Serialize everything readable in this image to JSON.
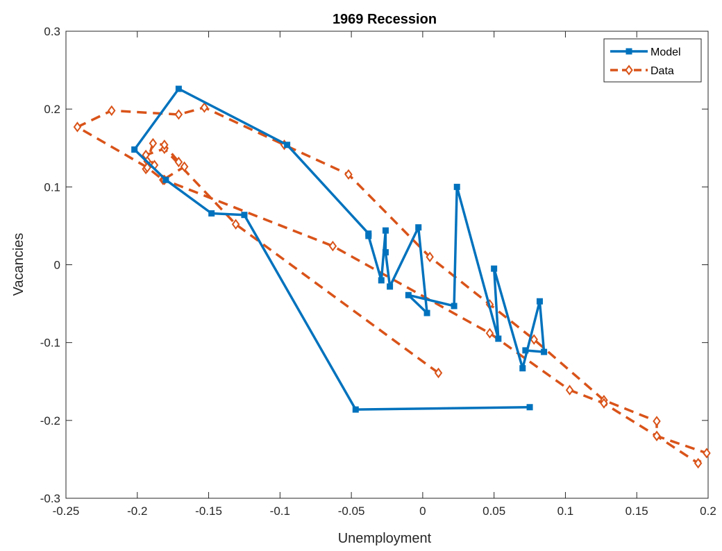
{
  "chart_data": {
    "type": "line",
    "title": "1969 Recession",
    "xlabel": "Unemployment",
    "ylabel": "Vacancies",
    "xlim": [
      -0.25,
      0.2
    ],
    "ylim": [
      -0.3,
      0.3
    ],
    "xticks": [
      -0.25,
      -0.2,
      -0.15,
      -0.1,
      -0.05,
      0,
      0.05,
      0.1,
      0.15,
      0.2
    ],
    "yticks": [
      -0.3,
      -0.2,
      -0.1,
      0,
      0.1,
      0.2,
      0.3
    ],
    "xtick_labels": [
      "-0.25",
      "-0.2",
      "-0.15",
      "-0.1",
      "-0.05",
      "0",
      "0.05",
      "0.1",
      "0.15",
      "0.2"
    ],
    "ytick_labels": [
      "-0.3",
      "-0.2",
      "-0.1",
      "0",
      "0.1",
      "0.2",
      "0.3"
    ],
    "grid": false,
    "legend_position": "top-right",
    "series": [
      {
        "name": "Model",
        "color": "#0072BD",
        "line_style": "solid",
        "marker": "square",
        "x": [
          0.075,
          -0.047,
          -0.125,
          -0.148,
          -0.18,
          -0.202,
          -0.171,
          -0.095,
          -0.038,
          -0.038,
          -0.029,
          -0.026,
          -0.026,
          -0.023,
          -0.003,
          0.003,
          -0.01,
          0.022,
          0.024,
          0.053,
          0.05,
          0.07,
          0.082,
          0.085,
          0.072
        ],
        "y": [
          -0.183,
          -0.186,
          0.064,
          0.066,
          0.109,
          0.148,
          0.226,
          0.154,
          0.04,
          0.037,
          -0.02,
          0.044,
          0.016,
          -0.028,
          0.048,
          -0.062,
          -0.039,
          -0.053,
          0.1,
          -0.095,
          -0.005,
          -0.133,
          -0.047,
          -0.112,
          -0.11
        ]
      },
      {
        "name": "Data",
        "color": "#D95319",
        "line_style": "dashed",
        "marker": "diamond",
        "x": [
          0.011,
          -0.131,
          -0.181,
          -0.194,
          -0.188,
          -0.194,
          -0.193,
          -0.189,
          -0.181,
          -0.171,
          -0.167,
          -0.182,
          -0.193,
          -0.242,
          -0.218,
          -0.171,
          -0.153,
          -0.097,
          -0.052,
          0.005,
          0.047,
          0.078,
          0.127,
          0.164,
          0.164,
          0.199,
          0.193,
          0.164,
          0.127,
          0.103,
          0.047,
          -0.063,
          -0.181
        ],
        "y": [
          -0.139,
          0.052,
          0.149,
          0.141,
          0.128,
          0.123,
          0.133,
          0.156,
          0.154,
          0.132,
          0.126,
          0.109,
          0.125,
          0.177,
          0.198,
          0.193,
          0.202,
          0.154,
          0.116,
          0.01,
          -0.051,
          -0.096,
          -0.174,
          -0.201,
          -0.22,
          -0.242,
          -0.255,
          -0.22,
          -0.178,
          -0.161,
          -0.088,
          0.024,
          0.109
        ]
      }
    ]
  }
}
